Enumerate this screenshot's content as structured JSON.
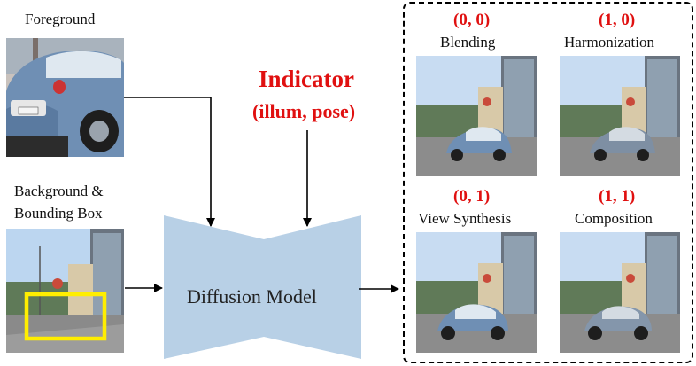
{
  "inputs": {
    "foreground_label": "Foreground",
    "background_label_line1": "Background &",
    "background_label_line2": "Bounding Box"
  },
  "indicator": {
    "title": "Indicator",
    "subtitle": "(illum, pose)"
  },
  "model": {
    "label": "Diffusion Model"
  },
  "outputs": [
    {
      "code": "(0, 0)",
      "task": "Blending"
    },
    {
      "code": "(1, 0)",
      "task": "Harmonization"
    },
    {
      "code": "(0, 1)",
      "task": "View Synthesis"
    },
    {
      "code": "(1, 1)",
      "task": "Composition"
    }
  ],
  "colors": {
    "indicator_red": "#e01010",
    "model_fill": "#b8d0e6",
    "bbox_yellow": "#ffee00",
    "car_blue": "#6f8fb4"
  }
}
